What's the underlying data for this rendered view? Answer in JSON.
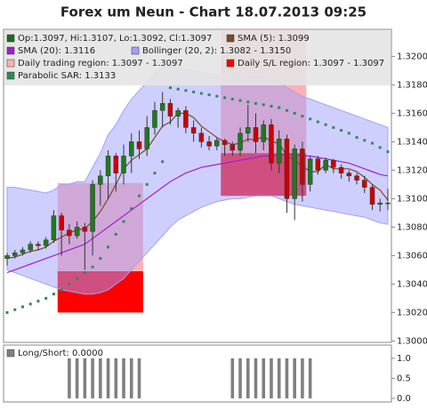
{
  "chart_data": [
    {
      "type": "candlestick",
      "title": "Forex um Neun - Chart 18.07.2013 09:25",
      "ylim": [
        1.2999,
        1.3219
      ],
      "yticks": [
        {
          "value": 1.3,
          "label": "1.3000"
        },
        {
          "value": 1.302,
          "label": "1.3020"
        },
        {
          "value": 1.304,
          "label": "1.3040"
        },
        {
          "value": 1.306,
          "label": "1.3060"
        },
        {
          "value": 1.308,
          "label": "1.3080"
        },
        {
          "value": 1.31,
          "label": "1.3100"
        },
        {
          "value": 1.312,
          "label": "1.3120"
        },
        {
          "value": 1.314,
          "label": "1.3140"
        },
        {
          "value": 1.316,
          "label": "1.3160"
        },
        {
          "value": 1.318,
          "label": "1.3180"
        },
        {
          "value": 1.32,
          "label": "1.3200"
        }
      ],
      "candles": {
        "name": "Op:1.3097, Hi:1.3107, Lo:1.3092, Cl:1.3097",
        "color": "#1f6b1f",
        "up_color": "#1f7a1f",
        "down_color": "#cc0000",
        "open": [
          1.3058,
          1.306,
          1.3062,
          1.3064,
          1.3068,
          1.3067,
          1.3071,
          1.3088,
          1.3078,
          1.3074,
          1.308,
          1.3077,
          1.311,
          1.3116,
          1.313,
          1.3118,
          1.313,
          1.314,
          1.3135,
          1.315,
          1.3162,
          1.3167,
          1.3158,
          1.3162,
          1.315,
          1.3146,
          1.314,
          1.3137,
          1.3141,
          1.3138,
          1.3134,
          1.3146,
          1.315,
          1.314,
          1.3152,
          1.3125,
          1.3142,
          1.31,
          1.3135,
          1.311,
          1.3128,
          1.312,
          1.3127,
          1.3122,
          1.3118,
          1.3116,
          1.3113,
          1.3108,
          1.3096,
          1.3097
        ],
        "high": [
          1.3062,
          1.3064,
          1.3066,
          1.307,
          1.307,
          1.3073,
          1.3092,
          1.309,
          1.3082,
          1.3084,
          1.3083,
          1.3113,
          1.312,
          1.3134,
          1.3132,
          1.3138,
          1.3146,
          1.3148,
          1.3158,
          1.3168,
          1.3175,
          1.317,
          1.3164,
          1.3165,
          1.3155,
          1.315,
          1.3144,
          1.3143,
          1.3142,
          1.314,
          1.315,
          1.3166,
          1.316,
          1.3155,
          1.3156,
          1.3148,
          1.3145,
          1.3138,
          1.314,
          1.313,
          1.313,
          1.3129,
          1.3128,
          1.3124,
          1.312,
          1.3118,
          1.3116,
          1.311,
          1.31,
          1.3107
        ],
        "low": [
          1.3053,
          1.3058,
          1.306,
          1.3062,
          1.3064,
          1.3065,
          1.3069,
          1.306,
          1.3068,
          1.3072,
          1.305,
          1.306,
          1.3095,
          1.31,
          1.3105,
          1.311,
          1.3118,
          1.3128,
          1.313,
          1.3145,
          1.315,
          1.3152,
          1.315,
          1.3146,
          1.314,
          1.3136,
          1.3134,
          1.3134,
          1.313,
          1.313,
          1.313,
          1.314,
          1.3132,
          1.3134,
          1.312,
          1.3118,
          1.309,
          1.3085,
          1.3098,
          1.3105,
          1.3117,
          1.3118,
          1.3118,
          1.3114,
          1.3112,
          1.311,
          1.3104,
          1.3092,
          1.3091,
          1.3092
        ],
        "close": [
          1.306,
          1.3062,
          1.3064,
          1.3068,
          1.3067,
          1.3071,
          1.3088,
          1.3078,
          1.3074,
          1.308,
          1.3077,
          1.311,
          1.3116,
          1.313,
          1.3118,
          1.313,
          1.314,
          1.3135,
          1.315,
          1.3162,
          1.3167,
          1.3158,
          1.3162,
          1.315,
          1.3146,
          1.314,
          1.3137,
          1.3141,
          1.3138,
          1.3134,
          1.3146,
          1.315,
          1.314,
          1.3152,
          1.3125,
          1.3142,
          1.31,
          1.3135,
          1.311,
          1.3128,
          1.312,
          1.3127,
          1.3122,
          1.3118,
          1.3116,
          1.3113,
          1.3108,
          1.3096,
          1.3097,
          1.3097
        ]
      },
      "series": [
        {
          "name": "SMA (5): 1.3099",
          "color": "#7a4a2a",
          "style": "line",
          "values": [
            1.3058,
            1.3059,
            1.3061,
            1.3063,
            1.3064,
            1.3066,
            1.307,
            1.3073,
            1.3076,
            1.3078,
            1.3079,
            1.3084,
            1.3091,
            1.31,
            1.311,
            1.3121,
            1.3127,
            1.3131,
            1.3135,
            1.3143,
            1.3151,
            1.3154,
            1.316,
            1.316,
            1.3157,
            1.3151,
            1.3147,
            1.3143,
            1.314,
            1.3138,
            1.3139,
            1.3142,
            1.3141,
            1.3144,
            1.314,
            1.3139,
            1.313,
            1.3127,
            1.3123,
            1.3119,
            1.3119,
            1.3124,
            1.3121,
            1.3121,
            1.3121,
            1.3119,
            1.3115,
            1.311,
            1.3106,
            1.3099
          ]
        },
        {
          "name": "SMA (20): 1.3116",
          "color": "#a020d0",
          "style": "line",
          "values": [
            1.3048,
            1.305,
            1.3052,
            1.3054,
            1.3056,
            1.3058,
            1.306,
            1.3062,
            1.3064,
            1.3066,
            1.3068,
            1.3072,
            1.3076,
            1.308,
            1.3084,
            1.3088,
            1.3092,
            1.3096,
            1.31,
            1.3104,
            1.3108,
            1.3112,
            1.3115,
            1.3118,
            1.312,
            1.3122,
            1.3123,
            1.3124,
            1.3125,
            1.3126,
            1.3127,
            1.3128,
            1.3129,
            1.313,
            1.313,
            1.3131,
            1.3131,
            1.3131,
            1.313,
            1.313,
            1.3129,
            1.3128,
            1.3127,
            1.3126,
            1.3125,
            1.3123,
            1.3121,
            1.3119,
            1.3117,
            1.3116
          ]
        },
        {
          "name": "Parabolic SAR: 1.3133",
          "color": "#2e8b57",
          "style": "dots",
          "values": [
            1.302,
            1.3022,
            1.3024,
            1.3026,
            1.3028,
            1.303,
            1.3033,
            1.3036,
            1.304,
            1.3044,
            1.3048,
            1.3052,
            1.3058,
            1.3066,
            1.3075,
            1.3084,
            1.3093,
            1.3102,
            1.311,
            1.3118,
            1.3126,
            1.3178,
            1.3177,
            1.3176,
            1.3175,
            1.3174,
            1.3173,
            1.3172,
            1.3171,
            1.317,
            1.3169,
            1.3168,
            1.3167,
            1.3166,
            1.3165,
            1.3164,
            1.3162,
            1.316,
            1.3158,
            1.3156,
            1.3154,
            1.3152,
            1.315,
            1.3148,
            1.3146,
            1.3143,
            1.3141,
            1.3139,
            1.3136,
            1.3133
          ]
        }
      ],
      "band": {
        "name": "Bollinger (20, 2): 1.3082 - 1.3150",
        "color": "#9fa0ff",
        "upper": [
          1.3108,
          1.3108,
          1.3107,
          1.3106,
          1.3105,
          1.3104,
          1.3106,
          1.311,
          1.311,
          1.3112,
          1.3112,
          1.3122,
          1.3132,
          1.3145,
          1.3152,
          1.3162,
          1.317,
          1.3176,
          1.3182,
          1.3188,
          1.3192,
          1.3193,
          1.3192,
          1.3191,
          1.319,
          1.3189,
          1.3188,
          1.3187,
          1.3186,
          1.3185,
          1.3185,
          1.3186,
          1.3186,
          1.3186,
          1.3184,
          1.3182,
          1.3178,
          1.3175,
          1.3172,
          1.317,
          1.3168,
          1.3166,
          1.3164,
          1.3162,
          1.316,
          1.3158,
          1.3156,
          1.3154,
          1.3152,
          1.315
        ],
        "lower": [
          1.305,
          1.3048,
          1.3046,
          1.3044,
          1.3042,
          1.304,
          1.3038,
          1.3036,
          1.3035,
          1.3034,
          1.3033,
          1.3033,
          1.3034,
          1.3036,
          1.304,
          1.3044,
          1.305,
          1.3056,
          1.3062,
          1.3068,
          1.3074,
          1.308,
          1.3085,
          1.3088,
          1.3091,
          1.3094,
          1.3096,
          1.3098,
          1.3099,
          1.31,
          1.31,
          1.3101,
          1.3102,
          1.3102,
          1.3102,
          1.31,
          1.3098,
          1.3096,
          1.3095,
          1.3094,
          1.3093,
          1.3092,
          1.3091,
          1.309,
          1.3089,
          1.3088,
          1.3087,
          1.3085,
          1.3083,
          1.3082
        ]
      },
      "regions": [
        {
          "name": "Daily trading region: 1.3097 - 1.3097",
          "color": "#ffb0b0",
          "spans": [
            {
              "from_index": 7,
              "to_index": 17,
              "values": [
                1.3111,
                1.3049
              ]
            },
            {
              "from_index": 28,
              "to_index": 38,
              "values": [
                1.3219,
                1.3132
              ]
            }
          ]
        },
        {
          "name": "Daily S/L region: 1.3097 - 1.3097",
          "color": "#ff0000",
          "spans": [
            {
              "from_index": 7,
              "to_index": 17,
              "values": [
                1.3049,
                1.302
              ]
            },
            {
              "from_index": 28,
              "to_index": 38,
              "values": [
                1.3132,
                1.3102
              ]
            }
          ]
        }
      ]
    },
    {
      "type": "bar",
      "ylim": [
        -0.09,
        1.33
      ],
      "yticks": [
        {
          "value": 0,
          "label": "0.0"
        },
        {
          "value": 0.5,
          "label": "0.5"
        },
        {
          "value": 1,
          "label": "1.0"
        }
      ],
      "series": [
        {
          "name": "Long/Short: 0.0000",
          "color": "#808080",
          "values": [
            0,
            0,
            0,
            0,
            0,
            0,
            0,
            0,
            1,
            1,
            1,
            1,
            1,
            1,
            1,
            1,
            1,
            1,
            0,
            0,
            0,
            0,
            0,
            0,
            0,
            0,
            0,
            0,
            0,
            1,
            1,
            1,
            1,
            1,
            1,
            1,
            1,
            1,
            1,
            1,
            0,
            0,
            0,
            0,
            0,
            0,
            0,
            0,
            0,
            0
          ]
        }
      ]
    }
  ]
}
